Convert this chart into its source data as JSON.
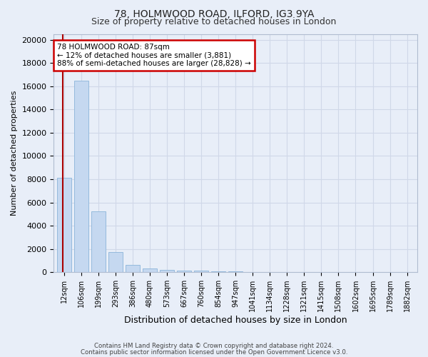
{
  "title1": "78, HOLMWOOD ROAD, ILFORD, IG3 9YA",
  "title2": "Size of property relative to detached houses in London",
  "xlabel": "Distribution of detached houses by size in London",
  "ylabel": "Number of detached properties",
  "categories": [
    "12sqm",
    "106sqm",
    "199sqm",
    "293sqm",
    "386sqm",
    "480sqm",
    "573sqm",
    "667sqm",
    "760sqm",
    "854sqm",
    "947sqm",
    "1041sqm",
    "1134sqm",
    "1228sqm",
    "1321sqm",
    "1415sqm",
    "1508sqm",
    "1602sqm",
    "1695sqm",
    "1789sqm",
    "1882sqm"
  ],
  "values": [
    8100,
    16500,
    5250,
    1750,
    650,
    320,
    190,
    145,
    115,
    75,
    50,
    25,
    0,
    0,
    0,
    0,
    0,
    0,
    0,
    0,
    0
  ],
  "bar_color": "#c5d8f0",
  "bar_edge_color": "#8ab4d9",
  "annotation_title": "78 HOLMWOOD ROAD: 87sqm",
  "annotation_line1": "← 12% of detached houses are smaller (3,881)",
  "annotation_line2": "88% of semi-detached houses are larger (28,828) →",
  "annotation_box_color": "#ffffff",
  "annotation_box_edge": "#cc0000",
  "vline_color": "#aa0000",
  "ylim": [
    0,
    20500
  ],
  "yticks": [
    0,
    2000,
    4000,
    6000,
    8000,
    10000,
    12000,
    14000,
    16000,
    18000,
    20000
  ],
  "footer1": "Contains HM Land Registry data © Crown copyright and database right 2024.",
  "footer2": "Contains public sector information licensed under the Open Government Licence v3.0.",
  "bg_color": "#e8eef8",
  "plot_bg_color": "#e8eef8",
  "grid_color": "#d0d8e8",
  "title1_fontsize": 10,
  "title2_fontsize": 9
}
